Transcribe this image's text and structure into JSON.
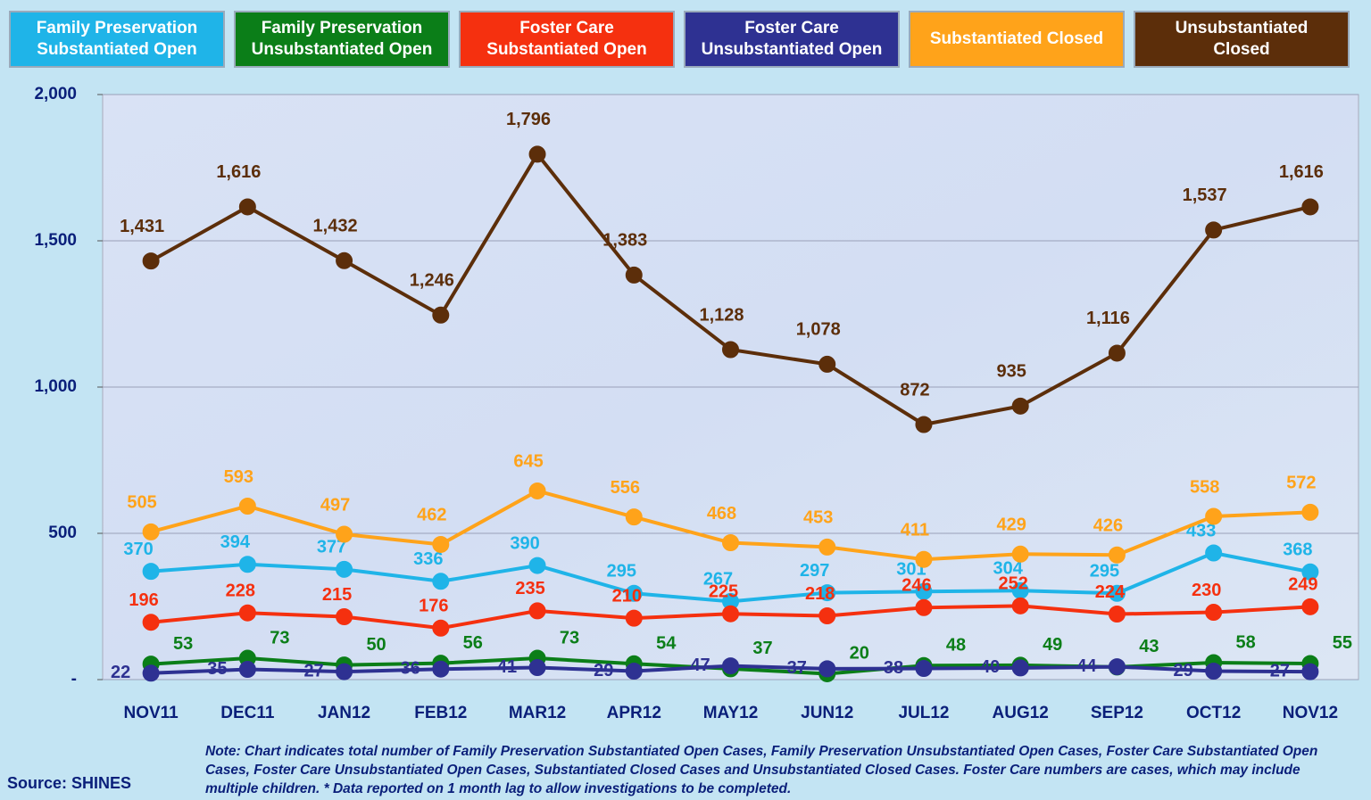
{
  "chart_data": {
    "type": "line",
    "categories": [
      "NOV11",
      "DEC11",
      "JAN12",
      "FEB12",
      "MAR12",
      "APR12",
      "MAY12",
      "JUN12",
      "JUL12",
      "AUG12",
      "SEP12",
      "OCT12",
      "NOV12"
    ],
    "series": [
      {
        "name": "Family Preservation Substantiated Open",
        "color": "#1FB4E8",
        "values": [
          370,
          394,
          377,
          336,
          390,
          295,
          267,
          297,
          301,
          304,
          295,
          433,
          368
        ]
      },
      {
        "name": "Family Preservation Unsubstantiated Open",
        "color": "#0B7E18",
        "values": [
          53,
          73,
          50,
          56,
          73,
          54,
          37,
          20,
          48,
          49,
          43,
          58,
          55
        ]
      },
      {
        "name": "Foster Care Substantiated Open",
        "color": "#F5300F",
        "values": [
          196,
          228,
          215,
          176,
          235,
          210,
          225,
          218,
          246,
          252,
          224,
          230,
          249
        ]
      },
      {
        "name": "Foster Care Unsubstantiated Open",
        "color": "#2E3192",
        "values": [
          22,
          35,
          27,
          36,
          41,
          29,
          47,
          37,
          38,
          40,
          44,
          29,
          27
        ]
      },
      {
        "name": "Substantiated Closed",
        "color": "#FFA31A",
        "values": [
          505,
          593,
          497,
          462,
          645,
          556,
          468,
          453,
          411,
          429,
          426,
          558,
          572
        ]
      },
      {
        "name": "Unsubstantiated Closed",
        "color": "#5C2E0A",
        "values": [
          1431,
          1616,
          1432,
          1246,
          1796,
          1383,
          1128,
          1078,
          872,
          935,
          1116,
          1537,
          1616
        ],
        "value_labels": [
          "1,431",
          "1,616",
          "1,432",
          "1,246",
          "1,796",
          "1,383",
          "1,128",
          "1,078",
          "872",
          "935",
          "1,116",
          "1,537",
          "1,616"
        ]
      }
    ],
    "ylim": [
      0,
      2000
    ],
    "yticks": [
      {
        "value": 0,
        "label": "-"
      },
      500,
      {
        "value": 1000,
        "label": "1,000"
      },
      {
        "value": 1500,
        "label": "1,500"
      },
      {
        "value": 2000,
        "label": "2,000"
      }
    ],
    "grid": true,
    "legend": "top",
    "note": "Note:  Chart indicates total number of Family Preservation Substantiated Open Cases, Family Preservation Unsubstantiated Open Cases, Foster Care Substantiated Open Cases, Foster Care Unsubstantiated Open Cases, Substantiated Closed Cases and Unsubstantiated Closed Cases. Foster Care numbers are cases, which may include multiple children.  * Data reported on 1 month lag to allow investigations to be completed.",
    "source": "Source: SHINES"
  }
}
